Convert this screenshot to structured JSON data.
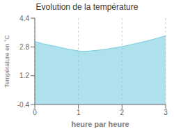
{
  "chart_data": {
    "type": "area",
    "title": "Evolution de la température",
    "xlabel": "heure par heure",
    "ylabel": "Température en °C",
    "x": [
      0,
      0.2,
      0.5,
      0.75,
      1.0,
      1.1,
      1.25,
      1.5,
      1.75,
      2.0,
      2.3,
      2.6,
      2.8,
      3.0
    ],
    "values": [
      3.1,
      2.97,
      2.82,
      2.68,
      2.58,
      2.55,
      2.57,
      2.63,
      2.72,
      2.82,
      2.98,
      3.15,
      3.28,
      3.42
    ],
    "color": "#7acde0",
    "xlim": [
      0,
      3
    ],
    "ylim": [
      -0.4,
      4.4
    ],
    "xticks": [
      0,
      1,
      2,
      3
    ],
    "yticks": [
      -0.4,
      1.2,
      2.8,
      4.4
    ],
    "grid": "x"
  }
}
